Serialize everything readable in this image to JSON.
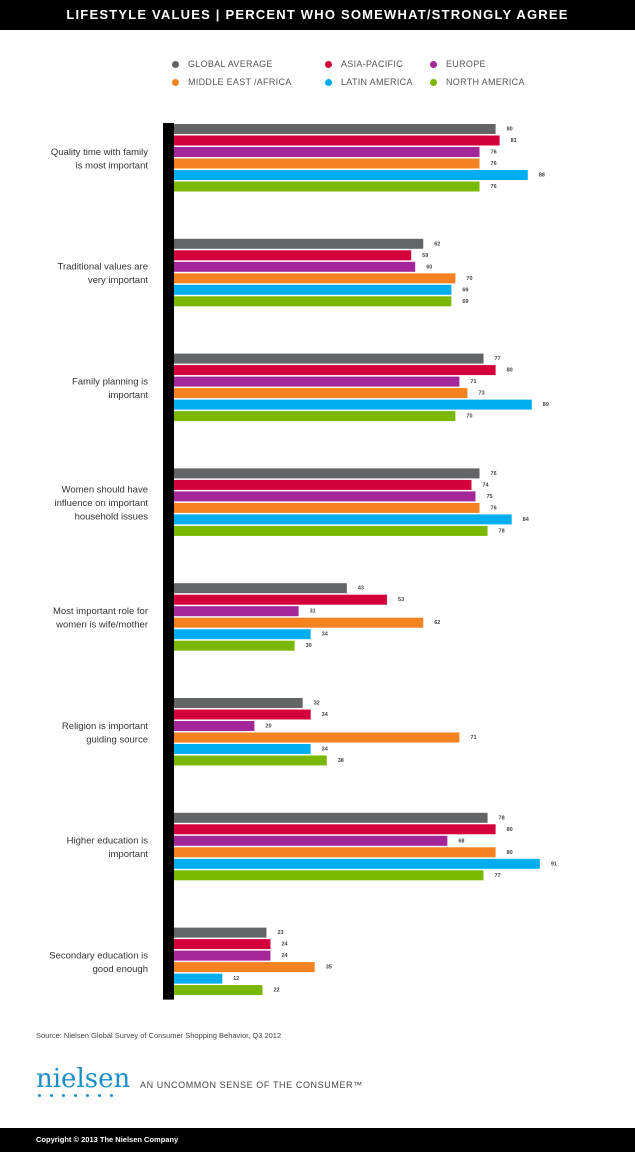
{
  "header": {
    "title": "LIFESTYLE VALUES | PERCENT WHO SOMEWHAT/STRONGLY AGREE"
  },
  "legend": [
    {
      "label": "GLOBAL AVERAGE",
      "color": "#636466"
    },
    {
      "label": "ASIA-PACIFIC",
      "color": "#d4003c"
    },
    {
      "label": "EUROPE",
      "color": "#a4279a"
    },
    {
      "label": "MIDDLE EAST /AFRICA",
      "color": "#f58220"
    },
    {
      "label": "LATIN AMERICA",
      "color": "#00aeef"
    },
    {
      "label": "NORTH AMERICA",
      "color": "#7ab800"
    }
  ],
  "chart_data": {
    "type": "bar",
    "orientation": "horizontal",
    "xlim": [
      0,
      100
    ],
    "categories": [
      [
        "Quality time with family",
        "is most important"
      ],
      [
        "Traditional values are",
        "very important"
      ],
      [
        "Family planning is",
        "important"
      ],
      [
        "Women should have",
        "influence on important",
        "household issues"
      ],
      [
        "Most important role for",
        "women is wife/mother"
      ],
      [
        "Religion is important",
        "guiding source"
      ],
      [
        "Higher education is",
        "important"
      ],
      [
        "Secondary education is",
        "good enough"
      ]
    ],
    "series": [
      {
        "name": "GLOBAL AVERAGE",
        "color": "#636466",
        "values": [
          80,
          62,
          77,
          76,
          43,
          32,
          78,
          23
        ]
      },
      {
        "name": "ASIA-PACIFIC",
        "color": "#d4003c",
        "values": [
          81,
          59,
          80,
          74,
          53,
          34,
          80,
          24
        ]
      },
      {
        "name": "EUROPE",
        "color": "#a4279a",
        "values": [
          76,
          60,
          71,
          75,
          31,
          20,
          68,
          24
        ]
      },
      {
        "name": "MIDDLE EAST /AFRICA",
        "color": "#f58220",
        "values": [
          76,
          70,
          73,
          76,
          62,
          71,
          80,
          35
        ]
      },
      {
        "name": "LATIN AMERICA",
        "color": "#00aeef",
        "values": [
          88,
          69,
          89,
          84,
          34,
          34,
          91,
          12
        ]
      },
      {
        "name": "NORTH AMERICA",
        "color": "#7ab800",
        "values": [
          76,
          69,
          70,
          78,
          30,
          38,
          77,
          22
        ]
      }
    ]
  },
  "source": "Source: Nielsen Global Survey of Consumer Shopping Behavior, Q3 2012",
  "brand": {
    "logo": "nielsen",
    "tagline": "AN UNCOMMON SENSE OF THE CONSUMER™"
  },
  "footer": {
    "copyright": "Copyright © 2013 The Nielsen Company"
  }
}
